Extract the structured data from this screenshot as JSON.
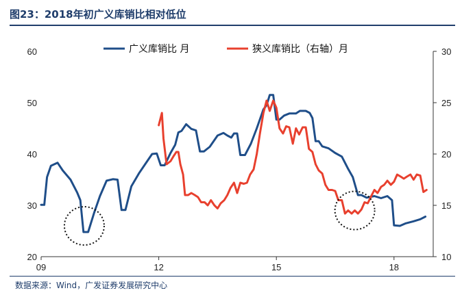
{
  "header": {
    "title": "图23：2018年初广义库销比相对低位"
  },
  "footer": {
    "source": "数据来源：Wind，广发证券发展研究中心"
  },
  "colors": {
    "broad": "#1f4e89",
    "narrow": "#e8402e",
    "title": "#1f3d6b",
    "axis": "#333333",
    "marker": "#111111"
  },
  "chart_data": {
    "type": "line",
    "title": "图23：2018年初广义库销比相对低位",
    "x_ticks": [
      {
        "label": "09",
        "t": 2009.0
      },
      {
        "label": "12",
        "t": 2012.0
      },
      {
        "label": "15",
        "t": 2015.0
      },
      {
        "label": "18",
        "t": 2018.0
      }
    ],
    "x_range": [
      2009.0,
      2019.0
    ],
    "y_left": {
      "range": [
        20,
        60
      ],
      "ticks": [
        20,
        30,
        40,
        50,
        60
      ]
    },
    "y_right": {
      "range": [
        10,
        30
      ],
      "ticks": [
        10,
        15,
        20,
        25,
        30
      ]
    },
    "legend": [
      "广义库销比 月",
      "狭义库销比（右轴）月"
    ],
    "series": [
      {
        "name": "广义库销比 月",
        "axis": "left",
        "points": [
          [
            2009.0,
            30.1
          ],
          [
            2009.08,
            30.1
          ],
          [
            2009.15,
            35.5
          ],
          [
            2009.25,
            37.7
          ],
          [
            2009.42,
            38.3
          ],
          [
            2009.55,
            36.8
          ],
          [
            2009.75,
            35.0
          ],
          [
            2009.92,
            32.5
          ],
          [
            2010.0,
            31.0
          ],
          [
            2010.08,
            24.8
          ],
          [
            2010.2,
            24.8
          ],
          [
            2010.35,
            28.5
          ],
          [
            2010.5,
            31.8
          ],
          [
            2010.67,
            34.8
          ],
          [
            2010.83,
            35.1
          ],
          [
            2010.95,
            35.0
          ],
          [
            2011.05,
            29.1
          ],
          [
            2011.15,
            29.1
          ],
          [
            2011.3,
            33.7
          ],
          [
            2011.5,
            36.3
          ],
          [
            2011.67,
            38.2
          ],
          [
            2011.83,
            40.0
          ],
          [
            2011.95,
            40.1
          ],
          [
            2012.05,
            37.8
          ],
          [
            2012.15,
            37.8
          ],
          [
            2012.3,
            40.2
          ],
          [
            2012.42,
            41.8
          ],
          [
            2012.5,
            44.2
          ],
          [
            2012.58,
            44.5
          ],
          [
            2012.7,
            45.8
          ],
          [
            2012.83,
            44.9
          ],
          [
            2012.95,
            44.6
          ],
          [
            2013.05,
            40.5
          ],
          [
            2013.15,
            40.5
          ],
          [
            2013.3,
            41.4
          ],
          [
            2013.5,
            43.6
          ],
          [
            2013.65,
            44.1
          ],
          [
            2013.75,
            43.6
          ],
          [
            2013.85,
            43.2
          ],
          [
            2013.92,
            44.0
          ],
          [
            2014.0,
            44.0
          ],
          [
            2014.08,
            39.8
          ],
          [
            2014.2,
            39.8
          ],
          [
            2014.35,
            42.0
          ],
          [
            2014.5,
            45.0
          ],
          [
            2014.67,
            48.7
          ],
          [
            2014.75,
            49.5
          ],
          [
            2014.83,
            51.5
          ],
          [
            2014.92,
            51.5
          ],
          [
            2015.0,
            46.7
          ],
          [
            2015.08,
            46.7
          ],
          [
            2015.2,
            47.5
          ],
          [
            2015.33,
            47.9
          ],
          [
            2015.5,
            47.9
          ],
          [
            2015.6,
            48.4
          ],
          [
            2015.75,
            48.4
          ],
          [
            2015.85,
            48.0
          ],
          [
            2015.92,
            47.0
          ],
          [
            2016.0,
            42.5
          ],
          [
            2016.08,
            42.5
          ],
          [
            2016.17,
            41.5
          ],
          [
            2016.33,
            41.1
          ],
          [
            2016.5,
            40.2
          ],
          [
            2016.67,
            39.5
          ],
          [
            2016.83,
            37.1
          ],
          [
            2016.95,
            35.5
          ],
          [
            2017.08,
            32.0
          ],
          [
            2017.17,
            32.0
          ],
          [
            2017.3,
            31.5
          ],
          [
            2017.5,
            31.8
          ],
          [
            2017.67,
            31.4
          ],
          [
            2017.83,
            31.8
          ],
          [
            2017.95,
            31.0
          ],
          [
            2018.0,
            26.1
          ],
          [
            2018.15,
            26.0
          ],
          [
            2018.3,
            26.5
          ],
          [
            2018.5,
            26.9
          ],
          [
            2018.67,
            27.3
          ],
          [
            2018.8,
            27.8
          ]
        ]
      },
      {
        "name": "狭义库销比（右轴）月",
        "axis": "right",
        "points": [
          [
            2012.0,
            22.8
          ],
          [
            2012.08,
            24.0
          ],
          [
            2012.12,
            21.5
          ],
          [
            2012.2,
            19.0
          ],
          [
            2012.3,
            19.3
          ],
          [
            2012.38,
            19.8
          ],
          [
            2012.45,
            20.2
          ],
          [
            2012.5,
            20.2
          ],
          [
            2012.55,
            19.0
          ],
          [
            2012.62,
            18.0
          ],
          [
            2012.67,
            16.0
          ],
          [
            2012.75,
            16.0
          ],
          [
            2012.83,
            16.2
          ],
          [
            2012.92,
            16.0
          ],
          [
            2013.0,
            15.8
          ],
          [
            2013.08,
            15.3
          ],
          [
            2013.17,
            15.3
          ],
          [
            2013.25,
            15.0
          ],
          [
            2013.33,
            15.5
          ],
          [
            2013.42,
            15.0
          ],
          [
            2013.5,
            14.7
          ],
          [
            2013.58,
            15.2
          ],
          [
            2013.67,
            15.5
          ],
          [
            2013.75,
            16.0
          ],
          [
            2013.83,
            16.7
          ],
          [
            2013.92,
            17.2
          ],
          [
            2014.0,
            16.2
          ],
          [
            2014.08,
            17.2
          ],
          [
            2014.17,
            17.1
          ],
          [
            2014.25,
            17.2
          ],
          [
            2014.33,
            18.0
          ],
          [
            2014.42,
            18.5
          ],
          [
            2014.5,
            20.0
          ],
          [
            2014.58,
            22.0
          ],
          [
            2014.67,
            24.0
          ],
          [
            2014.75,
            25.2
          ],
          [
            2014.83,
            24.2
          ],
          [
            2014.92,
            25.2
          ],
          [
            2015.0,
            24.5
          ],
          [
            2015.08,
            22.5
          ],
          [
            2015.17,
            22.0
          ],
          [
            2015.25,
            22.7
          ],
          [
            2015.33,
            22.6
          ],
          [
            2015.42,
            21.0
          ],
          [
            2015.5,
            22.5
          ],
          [
            2015.58,
            21.9
          ],
          [
            2015.67,
            22.6
          ],
          [
            2015.75,
            22.6
          ],
          [
            2015.83,
            20.5
          ],
          [
            2015.92,
            20.2
          ],
          [
            2016.0,
            19.0
          ],
          [
            2016.08,
            18.4
          ],
          [
            2016.17,
            18.1
          ],
          [
            2016.25,
            17.0
          ],
          [
            2016.33,
            16.5
          ],
          [
            2016.42,
            16.5
          ],
          [
            2016.5,
            16.4
          ],
          [
            2016.58,
            15.5
          ],
          [
            2016.67,
            15.5
          ],
          [
            2016.75,
            14.2
          ],
          [
            2016.83,
            14.5
          ],
          [
            2016.92,
            14.2
          ],
          [
            2017.0,
            14.5
          ],
          [
            2017.08,
            14.2
          ],
          [
            2017.17,
            14.6
          ],
          [
            2017.25,
            15.3
          ],
          [
            2017.33,
            15.2
          ],
          [
            2017.42,
            15.9
          ],
          [
            2017.5,
            16.5
          ],
          [
            2017.58,
            16.2
          ],
          [
            2017.67,
            16.8
          ],
          [
            2017.75,
            17.0
          ],
          [
            2017.83,
            17.4
          ],
          [
            2017.92,
            17.0
          ],
          [
            2018.0,
            17.3
          ],
          [
            2018.08,
            18.0
          ],
          [
            2018.17,
            17.8
          ],
          [
            2018.25,
            17.6
          ],
          [
            2018.33,
            17.8
          ],
          [
            2018.42,
            18.0
          ],
          [
            2018.5,
            17.5
          ],
          [
            2018.58,
            18.0
          ],
          [
            2018.67,
            17.9
          ],
          [
            2018.75,
            16.3
          ],
          [
            2018.83,
            16.5
          ]
        ]
      }
    ],
    "annotations": [
      {
        "type": "dotted-circle",
        "series": "广义库销比 月",
        "t": 2010.1,
        "value": 26.0
      },
      {
        "type": "dotted-circle",
        "series": "狭义库销比（右轴）月",
        "t": 2017.0,
        "value": 14.5
      }
    ]
  }
}
